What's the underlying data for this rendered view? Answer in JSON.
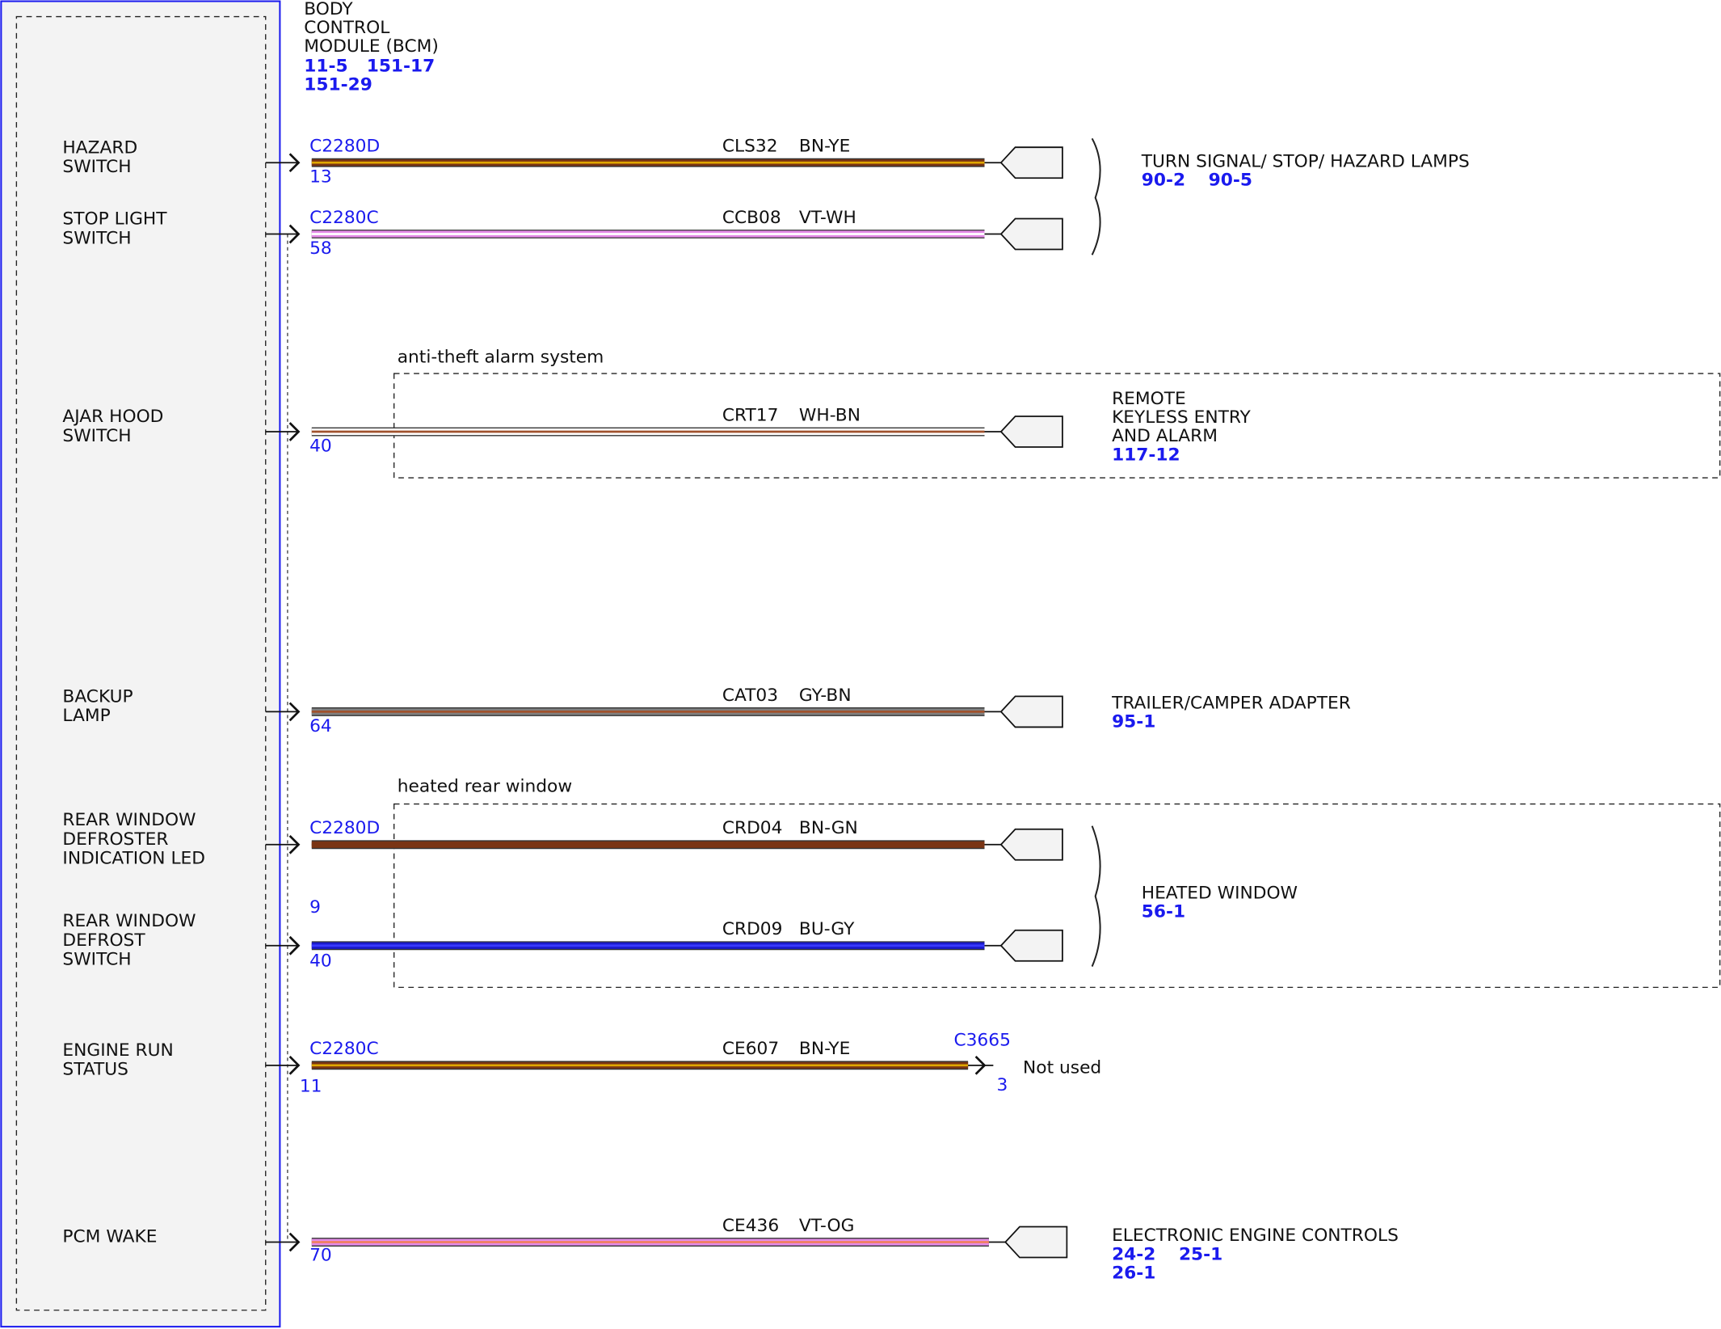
{
  "module": {
    "title": [
      "BODY",
      "CONTROL",
      "MODULE (BCM)"
    ],
    "refs": [
      "11-5",
      "151-17",
      "151-29"
    ]
  },
  "rows": [
    {
      "label": [
        "HAZARD",
        "SWITCH"
      ],
      "connector": "C2280D",
      "pin": "13",
      "circuit": "CLS32",
      "color": "BN-YE",
      "stripe": [
        "#7a3514",
        "#e0a800"
      ]
    },
    {
      "label": [
        "STOP LIGHT",
        "SWITCH"
      ],
      "connector": "C2280C",
      "pin": "58",
      "circuit": "CCB08",
      "color": "VT-WH",
      "stripe": [
        "#e58be8",
        "#ffffff"
      ]
    },
    {
      "label": [
        "AJAR HOOD",
        "SWITCH"
      ],
      "pin": "40",
      "circuit": "CRT17",
      "color": "WH-BN",
      "stripe": [
        "#ffffff",
        "#a0522d"
      ]
    },
    {
      "label": [
        "BACKUP",
        "LAMP"
      ],
      "pin": "64",
      "circuit": "CAT03",
      "color": "GY-BN",
      "stripe": [
        "#808080",
        "#a0522d"
      ]
    },
    {
      "label": [
        "REAR WINDOW",
        "DEFROSTER",
        "INDICATION LED"
      ],
      "connector": "C2280D",
      "pin": "9",
      "circuit": "CRD04",
      "color": "BN-GN",
      "stripe": [
        "#7a3514",
        "#7a3514"
      ]
    },
    {
      "label": [
        "REAR WINDOW",
        "DEFROST",
        "SWITCH"
      ],
      "pin": "40",
      "circuit": "CRD09",
      "color": "BU-GY",
      "stripe": [
        "#1a1acc",
        "#3a3aff"
      ]
    },
    {
      "label": [
        "ENGINE RUN",
        "STATUS"
      ],
      "connector": "C2280C",
      "pin": "11",
      "circuit": "CE607",
      "color": "BN-YE",
      "stripe": [
        "#7a3514",
        "#e0a800"
      ],
      "end_connector": "C3665",
      "end_pin": "3",
      "end_note": "Not used"
    },
    {
      "label": [
        "PCM WAKE"
      ],
      "pin": "70",
      "circuit": "CE436",
      "color": "VT-OG",
      "stripe": [
        "#e58be8",
        "#f08060"
      ]
    }
  ],
  "destinations": [
    {
      "lines": [
        "TURN SIGNAL/ STOP/ HAZARD LAMPS"
      ],
      "refs": [
        "90-2",
        "90-5"
      ]
    },
    {
      "lines": [
        "REMOTE",
        "KEYLESS ENTRY",
        "AND ALARM"
      ],
      "refs": [
        "117-12"
      ]
    },
    {
      "lines": [
        "TRAILER/CAMPER ADAPTER"
      ],
      "refs": [
        "95-1"
      ]
    },
    {
      "lines": [
        "HEATED WINDOW"
      ],
      "refs": [
        "56-1"
      ]
    },
    {
      "lines": [
        "ELECTRONIC ENGINE CONTROLS"
      ],
      "refs": [
        "24-2",
        "25-1",
        "26-1"
      ]
    }
  ],
  "groups": [
    "anti-theft alarm system",
    "heated rear window"
  ]
}
